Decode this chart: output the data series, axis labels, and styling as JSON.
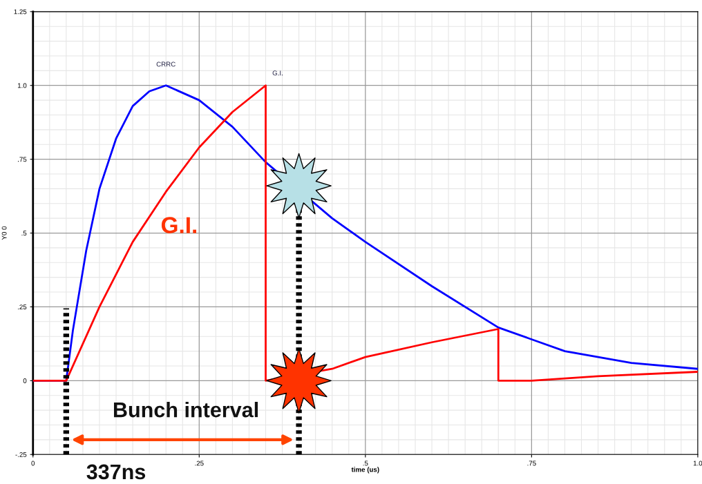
{
  "chart_data": {
    "type": "line",
    "xlabel": "time (us)",
    "ylabel": "Y0 0",
    "xlim": [
      0,
      1.0
    ],
    "ylim": [
      -0.25,
      1.25
    ],
    "xticks": [
      {
        "value": 0,
        "label": "0"
      },
      {
        "value": 0.25,
        "label": ".25"
      },
      {
        "value": 0.5,
        "label": ".5"
      },
      {
        "value": 0.75,
        "label": ".75"
      },
      {
        "value": 1.0,
        "label": "1.0"
      }
    ],
    "yticks": [
      {
        "value": -0.25,
        "label": "-.25"
      },
      {
        "value": 0,
        "label": "0"
      },
      {
        "value": 0.25,
        "label": ".25"
      },
      {
        "value": 0.5,
        "label": ".5"
      },
      {
        "value": 0.75,
        "label": ".75"
      },
      {
        "value": 1.0,
        "label": "1.0"
      },
      {
        "value": 1.25,
        "label": "1.25"
      }
    ],
    "grid": true,
    "marker": "none",
    "line_style": "solid",
    "series": [
      {
        "color": "#0000ff",
        "x": [
          0,
          0.05,
          0.06,
          0.08,
          0.1,
          0.125,
          0.15,
          0.175,
          0.2,
          0.25,
          0.3,
          0.35,
          0.45,
          0.5,
          0.6,
          0.7,
          0.8,
          0.9,
          1.0
        ],
        "values": [
          0,
          0,
          0.17,
          0.44,
          0.65,
          0.82,
          0.93,
          0.98,
          1.0,
          0.95,
          0.86,
          0.74,
          0.55,
          0.47,
          0.32,
          0.18,
          0.1,
          0.06,
          0.04
        ]
      },
      {
        "color": "#ff0000",
        "x": [
          0,
          0.05,
          0.1,
          0.15,
          0.2,
          0.25,
          0.3,
          0.35,
          0.35,
          0.45,
          0.5,
          0.6,
          0.7,
          0.7,
          0.75,
          0.85,
          1.0
        ],
        "values": [
          0,
          0,
          0.25,
          0.47,
          0.64,
          0.79,
          0.91,
          1.0,
          0,
          0.04,
          0.08,
          0.13,
          0.175,
          0,
          0,
          0.015,
          0.03
        ]
      }
    ],
    "ref_lines": [
      {
        "axis": "x",
        "value": 0.05,
        "color": "#000000",
        "line_style": "dotted"
      },
      {
        "axis": "x",
        "value": 0.4,
        "color": "#000000",
        "line_style": "dotted"
      }
    ],
    "annotations": [
      "CRRC",
      "G.I.",
      "G.I.",
      "Bunch interval",
      "337ns"
    ]
  }
}
